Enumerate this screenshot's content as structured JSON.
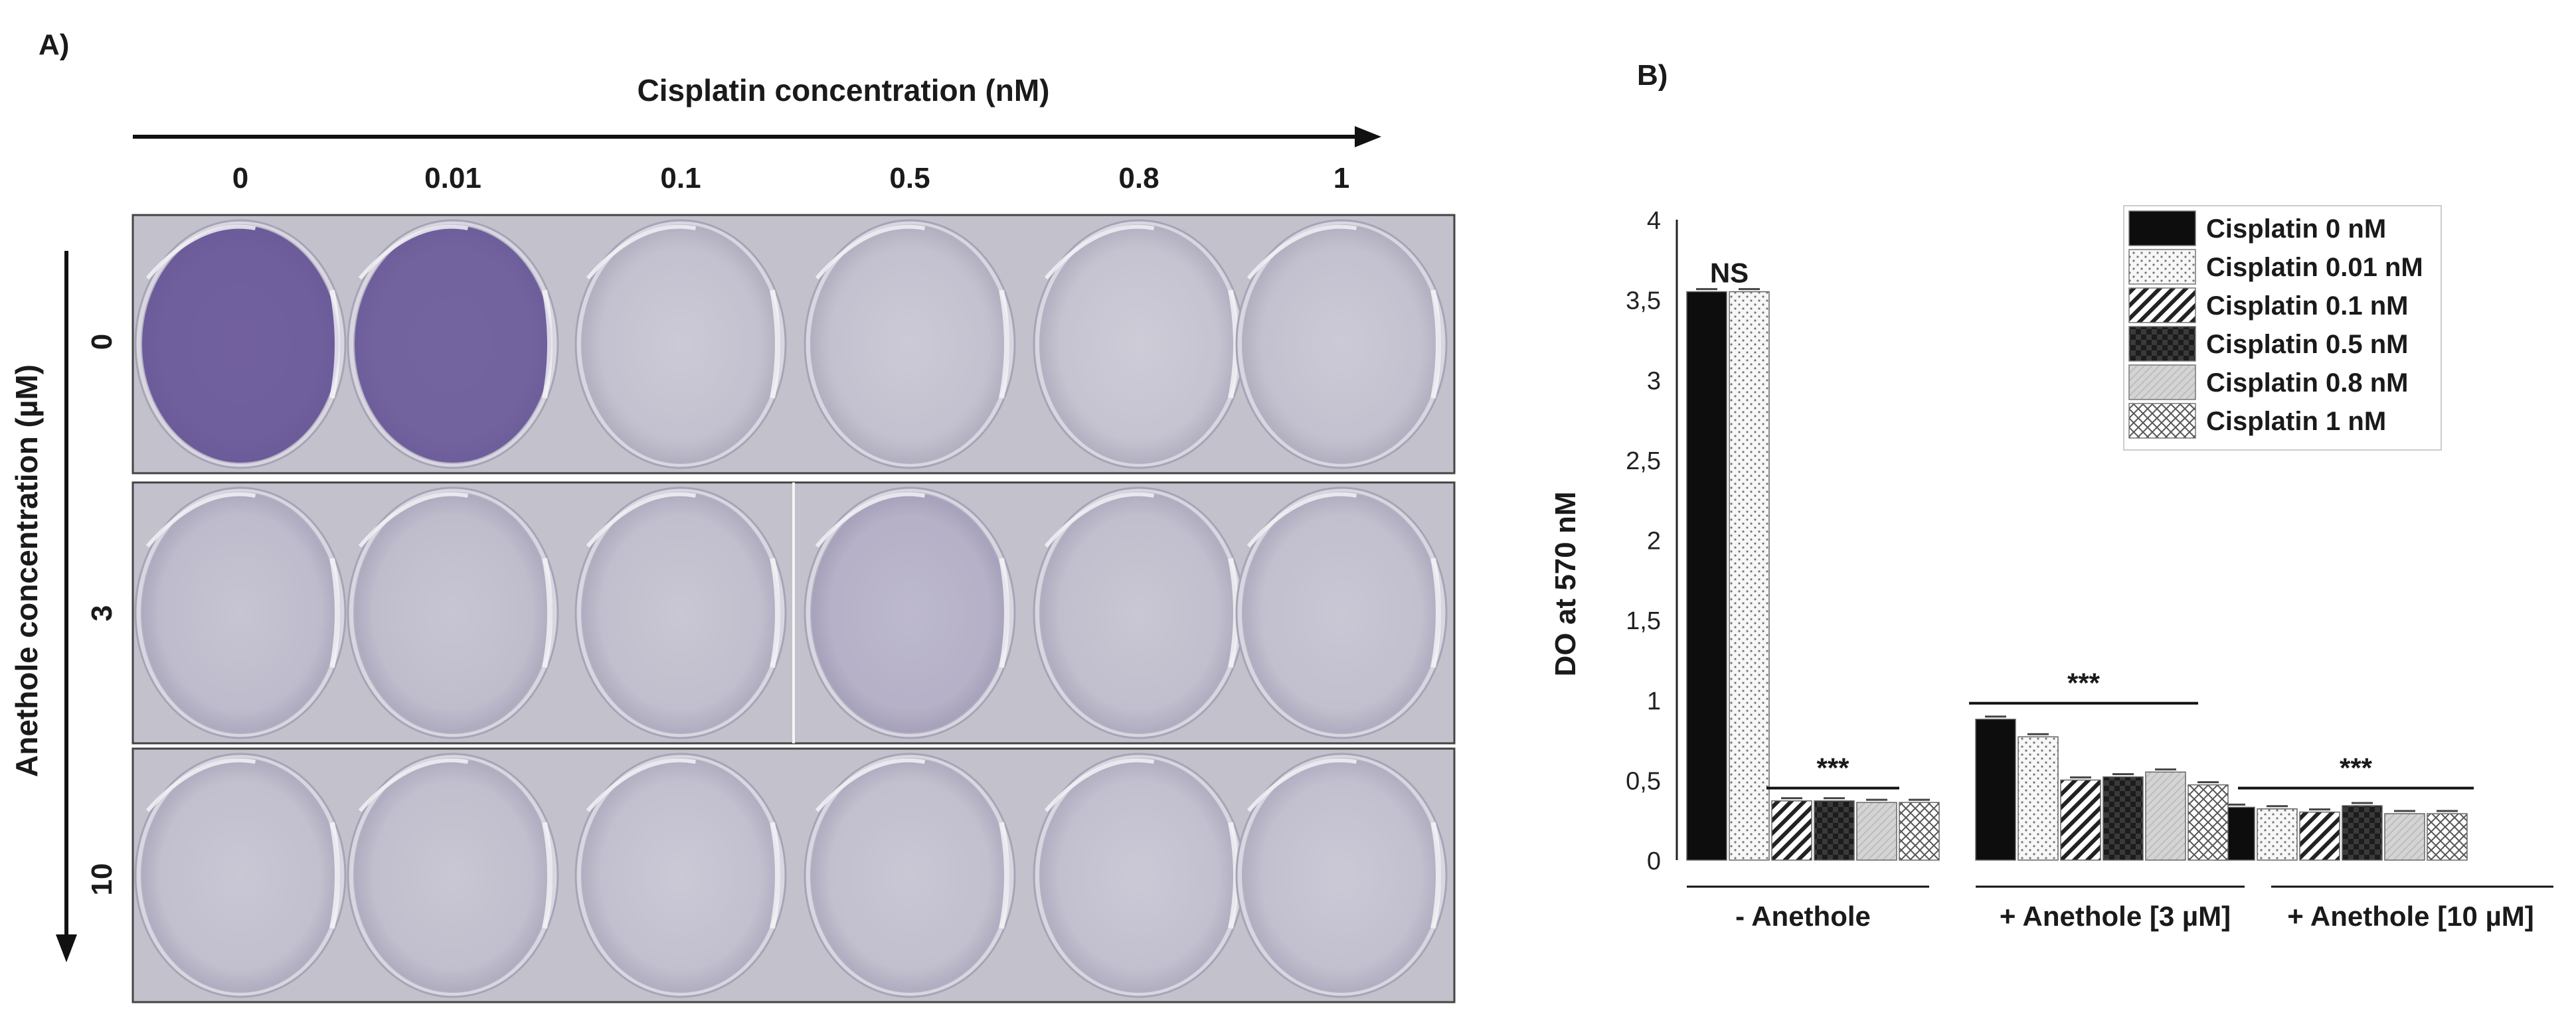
{
  "panel_a": {
    "label": "A)",
    "x_title": "Cisplatin concentration (nM)",
    "y_title": "Anethole concentration (µM)",
    "columns": [
      "0",
      "0.01",
      "0.1",
      "0.5",
      "0.8",
      "1"
    ],
    "rows": [
      "0",
      "3",
      "10"
    ],
    "stain_levels": [
      [
        0.95,
        0.92,
        0.02,
        0.02,
        0.01,
        0.02
      ],
      [
        0.08,
        0.07,
        0.05,
        0.18,
        0.05,
        0.04
      ],
      [
        0.04,
        0.05,
        0.03,
        0.04,
        0.03,
        0.03
      ]
    ],
    "colors": {
      "stain": "#5a4690",
      "well": "#c9c7d3",
      "plate_frame": "#444444"
    }
  },
  "panel_b": {
    "label": "B)"
  },
  "chart_data": {
    "type": "bar",
    "ylabel": "DO at 570 nM",
    "xlabel": "",
    "ylim": [
      0,
      4
    ],
    "yticks": [
      "0",
      "0,5",
      "1",
      "1,5",
      "2",
      "2,5",
      "3",
      "3,5",
      "4"
    ],
    "categories": [
      "-  Anethole",
      "+ Anethole [3 µM]",
      "+ Anethole [10 µM]"
    ],
    "series": [
      {
        "name": "Cisplatin 0 nM",
        "values": [
          3.55,
          0.88,
          0.33
        ],
        "pattern": "solid-black"
      },
      {
        "name": "Cisplatin 0.01 nM",
        "values": [
          3.55,
          0.77,
          0.32
        ],
        "pattern": "dots"
      },
      {
        "name": "Cisplatin 0.1 nM",
        "values": [
          0.37,
          0.5,
          0.3
        ],
        "pattern": "diagonal-hatch"
      },
      {
        "name": "Cisplatin 0.5 nM",
        "values": [
          0.37,
          0.52,
          0.34
        ],
        "pattern": "dark-checker"
      },
      {
        "name": "Cisplatin 0.8 nM",
        "values": [
          0.36,
          0.55,
          0.29
        ],
        "pattern": "light-gray"
      },
      {
        "name": "Cisplatin 1 nM",
        "values": [
          0.36,
          0.47,
          0.29
        ],
        "pattern": "crosshatch"
      }
    ],
    "annotations": [
      {
        "text": "NS",
        "group": 0,
        "level": 3.7
      },
      {
        "text": "***",
        "group": 0,
        "level": 0.45
      },
      {
        "text": "***",
        "group": 1,
        "level": 0.98
      },
      {
        "text": "***",
        "group": 2,
        "level": 0.45
      }
    ],
    "grid": false,
    "legend_position": "top-right"
  }
}
